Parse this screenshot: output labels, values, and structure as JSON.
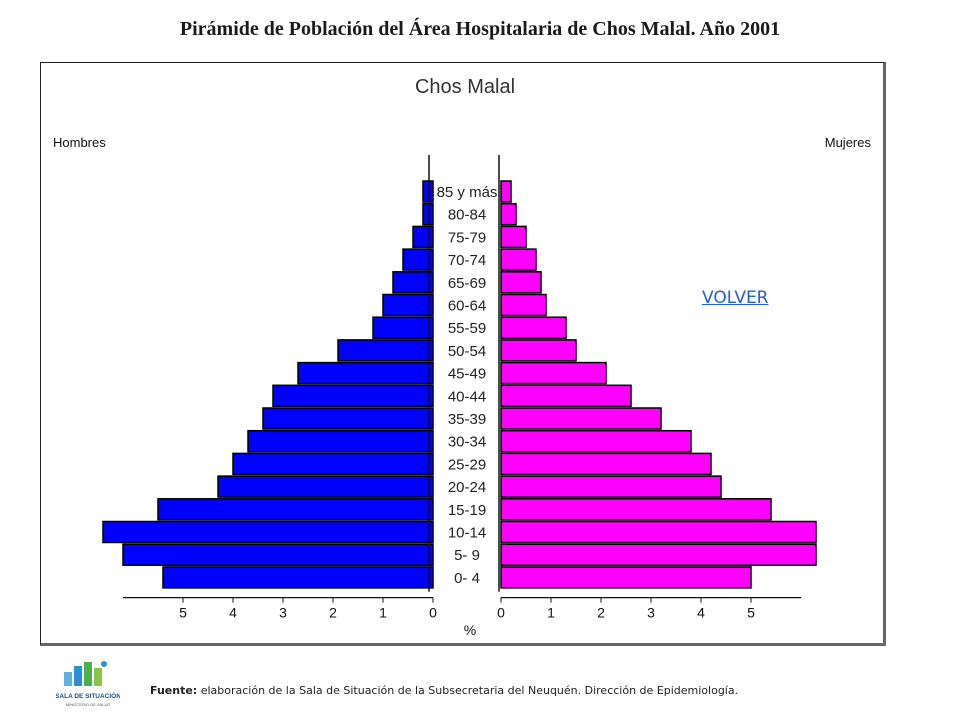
{
  "page": {
    "title": "Pirámide de Población del Área Hospitalaria de Chos Malal. Año 2001",
    "volver_label": "VOLVER",
    "source_label": "Fuente:",
    "source_text": "elaboración de la Sala de Situación de la Subsecretaria del Neuquén. Dirección de Epidemiología.",
    "logo": {
      "title": "SALA DE SITUACIÓN",
      "subtitle": "MINISTERIO DE SALUD",
      "icon": "sala-de-situacion-logo-icon"
    }
  },
  "chart_data": {
    "type": "bar",
    "orientation": "horizontal-population-pyramid",
    "title": "Chos Malal",
    "left_label": "Hombres",
    "right_label": "Mujeres",
    "xlabel": "%",
    "xlim": [
      0,
      6
    ],
    "xticks": [
      0,
      1,
      2,
      3,
      4,
      5
    ],
    "categories": [
      "85 y más",
      "80-84",
      "75-79",
      "70-74",
      "65-69",
      "60-64",
      "55-59",
      "50-54",
      "45-49",
      "40-44",
      "35-39",
      "30-34",
      "25-29",
      "20-24",
      "15-19",
      "10-14",
      "5- 9",
      "0- 4"
    ],
    "series": [
      {
        "name": "Hombres",
        "color": "#0000ff",
        "values": [
          0.2,
          0.2,
          0.4,
          0.6,
          0.8,
          1.0,
          1.2,
          1.9,
          2.7,
          3.2,
          3.4,
          3.7,
          4.0,
          4.3,
          5.5,
          6.6,
          6.2,
          5.4
        ]
      },
      {
        "name": "Mujeres",
        "color": "#ff00ff",
        "values": [
          0.2,
          0.3,
          0.5,
          0.7,
          0.8,
          0.9,
          1.3,
          1.5,
          2.1,
          2.6,
          3.2,
          3.8,
          4.2,
          4.4,
          5.4,
          6.3,
          6.3,
          5.0
        ]
      }
    ]
  }
}
